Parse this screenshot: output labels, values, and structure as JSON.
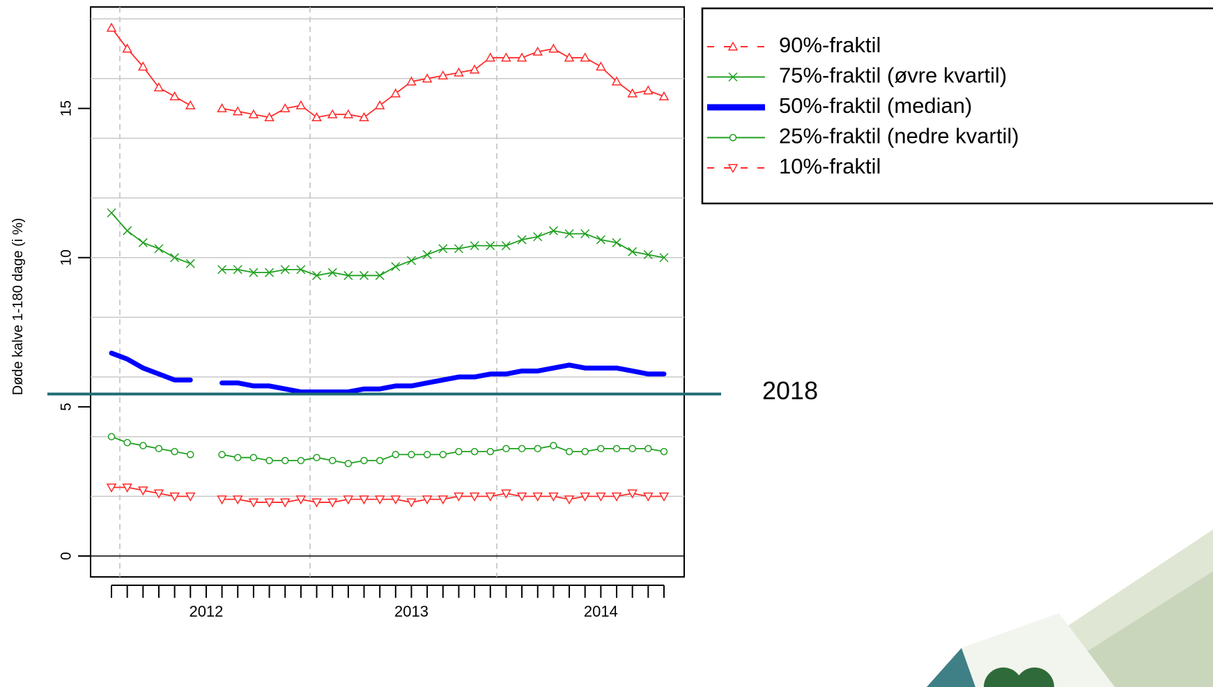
{
  "chart_data": {
    "type": "line",
    "y_axis_label": "Døde kalve 1-180 dage (i %)",
    "categories": [
      null,
      null,
      null,
      null,
      null,
      null,
      "2012",
      null,
      null,
      null,
      null,
      null,
      null,
      null,
      null,
      null,
      null,
      null,
      null,
      "2013",
      null,
      null,
      null,
      null,
      null,
      null,
      null,
      null,
      null,
      null,
      null,
      "2014",
      null,
      null,
      null,
      null
    ],
    "ylim": [
      -0.7,
      18.4
    ],
    "yticks": [
      0,
      5,
      10,
      15
    ],
    "ygrid": [
      2,
      4,
      6,
      8,
      10,
      12,
      14,
      16,
      18
    ],
    "grid": true,
    "legend": "top-right",
    "series": [
      {
        "name": "90%-fraktil",
        "color": "#ff2a2a",
        "marker": "triangle-up",
        "dash": true,
        "values": [
          17.7,
          17.0,
          16.4,
          15.7,
          15.4,
          15.1,
          null,
          15.0,
          14.9,
          14.8,
          14.7,
          15.0,
          15.1,
          14.7,
          14.8,
          14.8,
          14.7,
          15.1,
          15.5,
          15.9,
          16.0,
          16.1,
          16.2,
          16.3,
          16.7,
          16.7,
          16.7,
          16.9,
          17.0,
          16.7,
          16.7,
          16.4,
          15.9,
          15.5,
          15.6,
          15.4
        ]
      },
      {
        "name": "75%-fraktil (øvre kvartil)",
        "color": "#1fa01f",
        "marker": "cross",
        "dash": false,
        "values": [
          11.5,
          10.9,
          10.5,
          10.3,
          10.0,
          9.8,
          null,
          9.6,
          9.6,
          9.5,
          9.5,
          9.6,
          9.6,
          9.4,
          9.5,
          9.4,
          9.4,
          9.4,
          9.7,
          9.9,
          10.1,
          10.3,
          10.3,
          10.4,
          10.4,
          10.4,
          10.6,
          10.7,
          10.9,
          10.8,
          10.8,
          10.6,
          10.5,
          10.2,
          10.1,
          10.0
        ]
      },
      {
        "name": "50%-fraktil (median)",
        "color": "#0000ff",
        "marker": "none",
        "dash": false,
        "values": [
          6.8,
          6.6,
          6.3,
          6.1,
          5.9,
          5.9,
          null,
          5.8,
          5.8,
          5.7,
          5.7,
          5.6,
          5.5,
          5.5,
          5.5,
          5.5,
          5.6,
          5.6,
          5.7,
          5.7,
          5.8,
          5.9,
          6.0,
          6.0,
          6.1,
          6.1,
          6.2,
          6.2,
          6.3,
          6.4,
          6.3,
          6.3,
          6.3,
          6.2,
          6.1,
          6.1
        ]
      },
      {
        "name": "25%-fraktil (nedre kvartil)",
        "color": "#1fa01f",
        "marker": "circle",
        "dash": false,
        "values": [
          4.0,
          3.8,
          3.7,
          3.6,
          3.5,
          3.4,
          null,
          3.4,
          3.3,
          3.3,
          3.2,
          3.2,
          3.2,
          3.3,
          3.2,
          3.1,
          3.2,
          3.2,
          3.4,
          3.4,
          3.4,
          3.4,
          3.5,
          3.5,
          3.5,
          3.6,
          3.6,
          3.6,
          3.7,
          3.5,
          3.5,
          3.6,
          3.6,
          3.6,
          3.6,
          3.5
        ]
      },
      {
        "name": "10%-fraktil",
        "color": "#ff2a2a",
        "marker": "triangle-down",
        "dash": true,
        "values": [
          2.3,
          2.3,
          2.2,
          2.1,
          2.0,
          2.0,
          null,
          1.9,
          1.9,
          1.8,
          1.8,
          1.8,
          1.9,
          1.8,
          1.8,
          1.9,
          1.9,
          1.9,
          1.9,
          1.8,
          1.9,
          1.9,
          2.0,
          2.0,
          2.0,
          2.1,
          2.0,
          2.0,
          2.0,
          1.9,
          2.0,
          2.0,
          2.0,
          2.1,
          2.0,
          2.0
        ]
      }
    ],
    "reference_line": {
      "value": 5.43,
      "label": "2018",
      "color": "#1d6a74"
    }
  }
}
